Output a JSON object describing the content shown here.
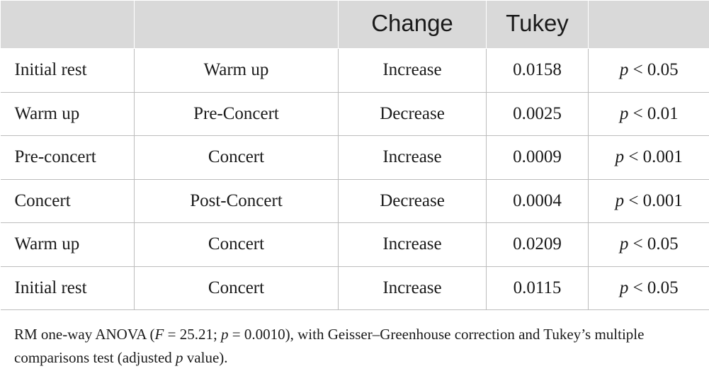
{
  "table": {
    "headers": [
      "",
      "",
      "Change",
      "Tukey",
      ""
    ],
    "rows": [
      {
        "from": "Initial rest",
        "to": "Warm up",
        "change": "Increase",
        "tukey": "0.0158",
        "p_symbol": "p",
        "p_rest": " < 0.05"
      },
      {
        "from": "Warm up",
        "to": "Pre-Concert",
        "change": "Decrease",
        "tukey": "0.0025",
        "p_symbol": "p",
        "p_rest": " < 0.01"
      },
      {
        "from": "Pre-concert",
        "to": "Concert",
        "change": "Increase",
        "tukey": "0.0009",
        "p_symbol": "p",
        "p_rest": " < 0.001"
      },
      {
        "from": "Concert",
        "to": "Post-Concert",
        "change": "Decrease",
        "tukey": "0.0004",
        "p_symbol": "p",
        "p_rest": " < 0.001"
      },
      {
        "from": "Warm up",
        "to": "Concert",
        "change": "Increase",
        "tukey": "0.0209",
        "p_symbol": "p",
        "p_rest": " < 0.05"
      },
      {
        "from": "Initial rest",
        "to": "Concert",
        "change": "Increase",
        "tukey": "0.0115",
        "p_symbol": "p",
        "p_rest": " < 0.05"
      }
    ]
  },
  "footnote": {
    "part1": "RM one-way ANOVA (",
    "f_symbol": "F",
    "part2": " = 25.21; ",
    "p_symbol": "p",
    "part3": " = 0.0010), with Geisser–Greenhouse correction and Tukey’s multiple comparisons test (adjusted ",
    "p_symbol2": "p",
    "part4": " value)."
  },
  "colors": {
    "header_bg": "#d9d9d9",
    "grid_line": "#bdbdbd",
    "text": "#1a1a1a"
  }
}
